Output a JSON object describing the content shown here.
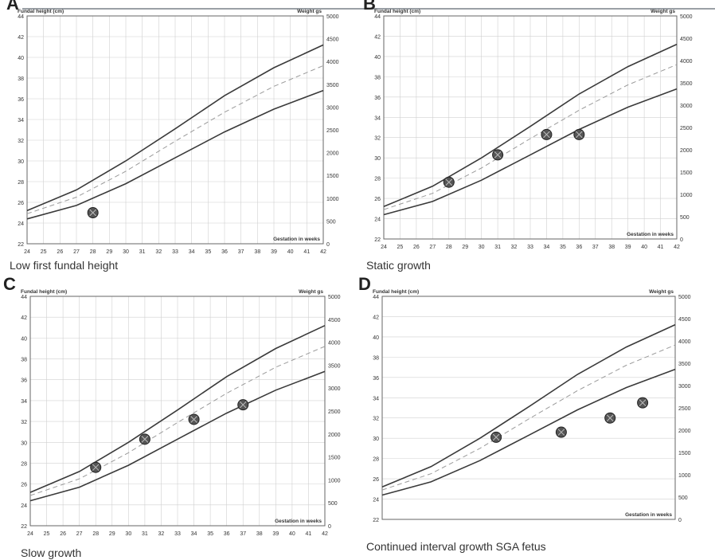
{
  "chart_data": [
    {
      "panel": "A",
      "caption": "Low first fundal height",
      "type": "line",
      "left_axis_title": "Fundal height (cm)",
      "right_axis_title": "Weight gs",
      "x_axis_title": "Gestation in weeks",
      "xlim": [
        24,
        42
      ],
      "ylim": [
        22,
        44
      ],
      "y2lim": [
        0,
        5000
      ],
      "x_ticks": [
        24,
        25,
        26,
        27,
        28,
        29,
        30,
        31,
        32,
        33,
        34,
        35,
        36,
        37,
        38,
        39,
        40,
        41,
        42
      ],
      "y_ticks": [
        22,
        24,
        26,
        28,
        30,
        32,
        34,
        36,
        38,
        40,
        42,
        44
      ],
      "y2_ticks": [
        0,
        500,
        1000,
        1500,
        2000,
        2500,
        3000,
        3500,
        4000,
        4500,
        5000
      ],
      "series": [
        {
          "role": "upper",
          "x": [
            24,
            27,
            30,
            33,
            36,
            39,
            42
          ],
          "y": [
            25.2,
            27.2,
            30.0,
            33.1,
            36.3,
            39.0,
            41.2
          ],
          "style": "solid"
        },
        {
          "role": "median",
          "x": [
            24,
            27,
            30,
            33,
            36,
            39,
            42
          ],
          "y": [
            24.9,
            26.5,
            29.0,
            31.9,
            34.7,
            37.2,
            39.2
          ],
          "style": "dashed"
        },
        {
          "role": "lower",
          "x": [
            24,
            27,
            30,
            33,
            36,
            39,
            42
          ],
          "y": [
            24.4,
            25.7,
            27.8,
            30.3,
            32.8,
            35.0,
            36.8
          ],
          "style": "solid"
        }
      ],
      "points": [
        {
          "x": 28,
          "y": 25.0
        }
      ]
    },
    {
      "panel": "B",
      "caption": "Static growth",
      "type": "line",
      "left_axis_title": "Fundal height (cm)",
      "right_axis_title": "Weight gs",
      "x_axis_title": "Gestation in weeks",
      "xlim": [
        24,
        42
      ],
      "ylim": [
        22,
        44
      ],
      "y2lim": [
        0,
        5000
      ],
      "x_ticks": [
        24,
        25,
        26,
        27,
        28,
        29,
        30,
        31,
        32,
        33,
        34,
        35,
        36,
        37,
        38,
        39,
        40,
        41,
        42
      ],
      "y_ticks": [
        22,
        24,
        26,
        28,
        30,
        32,
        34,
        36,
        38,
        40,
        42,
        44
      ],
      "y2_ticks": [
        0,
        500,
        1000,
        1500,
        2000,
        2500,
        3000,
        3500,
        4000,
        4500,
        5000
      ],
      "series": [
        {
          "role": "upper",
          "x": [
            24,
            27,
            30,
            33,
            36,
            39,
            42
          ],
          "y": [
            25.2,
            27.2,
            30.0,
            33.1,
            36.3,
            39.0,
            41.2
          ],
          "style": "solid"
        },
        {
          "role": "median",
          "x": [
            24,
            27,
            30,
            33,
            36,
            39,
            42
          ],
          "y": [
            24.9,
            26.5,
            29.0,
            31.9,
            34.7,
            37.2,
            39.2
          ],
          "style": "dashed"
        },
        {
          "role": "lower",
          "x": [
            24,
            27,
            30,
            33,
            36,
            39,
            42
          ],
          "y": [
            24.4,
            25.7,
            27.8,
            30.3,
            32.8,
            35.0,
            36.8
          ],
          "style": "solid"
        }
      ],
      "points": [
        {
          "x": 28,
          "y": 27.6
        },
        {
          "x": 31,
          "y": 30.3
        },
        {
          "x": 34,
          "y": 32.3
        },
        {
          "x": 36,
          "y": 32.3
        }
      ]
    },
    {
      "panel": "C",
      "caption": "Slow growth",
      "type": "line",
      "left_axis_title": "Fundal height (cm)",
      "right_axis_title": "Weight gs",
      "x_axis_title": "Gestation in weeks",
      "xlim": [
        24,
        42
      ],
      "ylim": [
        22,
        44
      ],
      "y2lim": [
        0,
        5000
      ],
      "x_ticks": [
        24,
        25,
        26,
        27,
        28,
        29,
        30,
        31,
        32,
        33,
        34,
        35,
        36,
        37,
        38,
        39,
        40,
        41,
        42
      ],
      "y_ticks": [
        22,
        24,
        26,
        28,
        30,
        32,
        34,
        36,
        38,
        40,
        42,
        44
      ],
      "y2_ticks": [
        0,
        500,
        1000,
        1500,
        2000,
        2500,
        3000,
        3500,
        4000,
        4500,
        5000
      ],
      "series": [
        {
          "role": "upper",
          "x": [
            24,
            27,
            30,
            33,
            36,
            39,
            42
          ],
          "y": [
            25.2,
            27.2,
            30.0,
            33.1,
            36.3,
            39.0,
            41.2
          ],
          "style": "solid"
        },
        {
          "role": "median",
          "x": [
            24,
            27,
            30,
            33,
            36,
            39,
            42
          ],
          "y": [
            24.9,
            26.5,
            29.0,
            31.9,
            34.7,
            37.2,
            39.2
          ],
          "style": "dashed"
        },
        {
          "role": "lower",
          "x": [
            24,
            27,
            30,
            33,
            36,
            39,
            42
          ],
          "y": [
            24.4,
            25.7,
            27.8,
            30.3,
            32.8,
            35.0,
            36.8
          ],
          "style": "solid"
        }
      ],
      "points": [
        {
          "x": 28,
          "y": 27.6
        },
        {
          "x": 31,
          "y": 30.3
        },
        {
          "x": 34,
          "y": 32.2
        },
        {
          "x": 37,
          "y": 33.6
        }
      ]
    },
    {
      "panel": "D",
      "caption": "Continued interval growth   SGA fetus",
      "type": "line",
      "left_axis_title": "Fundal height (cm)",
      "right_axis_title": "Weight gs",
      "x_axis_title": "Gestation in weeks",
      "xlim": [
        24,
        42
      ],
      "ylim": [
        22,
        44
      ],
      "y2lim": [
        0,
        5000
      ],
      "y_ticks": [
        22,
        24,
        26,
        28,
        30,
        32,
        34,
        36,
        38,
        40,
        42,
        44
      ],
      "y2_ticks": [
        0,
        500,
        1000,
        1500,
        2000,
        2500,
        3000,
        3500,
        4000,
        4500,
        5000
      ],
      "series": [
        {
          "role": "upper",
          "x": [
            24,
            27,
            30,
            33,
            36,
            39,
            42
          ],
          "y": [
            25.2,
            27.2,
            30.0,
            33.1,
            36.3,
            39.0,
            41.2
          ],
          "style": "solid"
        },
        {
          "role": "median",
          "x": [
            24,
            27,
            30,
            33,
            36,
            39,
            42
          ],
          "y": [
            24.9,
            26.5,
            29.0,
            31.9,
            34.7,
            37.2,
            39.2
          ],
          "style": "dashed"
        },
        {
          "role": "lower",
          "x": [
            24,
            27,
            30,
            33,
            36,
            39,
            42
          ],
          "y": [
            24.4,
            25.7,
            27.8,
            30.3,
            32.8,
            35.0,
            36.8
          ],
          "style": "solid"
        }
      ],
      "points": [
        {
          "x": 31,
          "y": 30.1
        },
        {
          "x": 35,
          "y": 30.6
        },
        {
          "x": 38,
          "y": 32.0
        },
        {
          "x": 40,
          "y": 33.5
        }
      ]
    }
  ]
}
